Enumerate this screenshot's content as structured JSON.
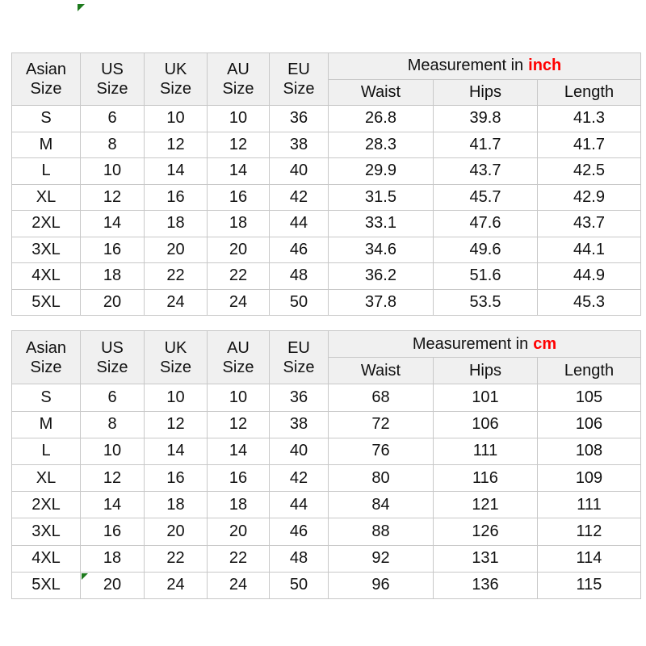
{
  "colors": {
    "unit_accent_red": "#ff0000",
    "flag_green": "#1d7a1d",
    "header_background": "#f0f0f0",
    "grid_border": "#c8c8c8"
  },
  "chart_data": {
    "type": "table",
    "tables": [
      {
        "unit_name": "inch",
        "measurement_prefix": "Measurement in",
        "measurement_unit": "inch",
        "size_headers": [
          {
            "label": "Asian\nSize"
          },
          {
            "label": "US\nSize"
          },
          {
            "label": "UK\nSize"
          },
          {
            "label": "AU\nSize"
          },
          {
            "label": "EU\nSize"
          }
        ],
        "measure_headers": [
          "Waist",
          "Hips",
          "Length"
        ],
        "rows": [
          [
            "S",
            "6",
            "10",
            "10",
            "36",
            "26.8",
            "39.8",
            "41.3"
          ],
          [
            "M",
            "8",
            "12",
            "12",
            "38",
            "28.3",
            "41.7",
            "41.7"
          ],
          [
            "L",
            "10",
            "14",
            "14",
            "40",
            "29.9",
            "43.7",
            "42.5"
          ],
          [
            "XL",
            "12",
            "16",
            "16",
            "42",
            "31.5",
            "45.7",
            "42.9"
          ],
          [
            "2XL",
            "14",
            "18",
            "18",
            "44",
            "33.1",
            "47.6",
            "43.7"
          ],
          [
            "3XL",
            "16",
            "20",
            "20",
            "46",
            "34.6",
            "49.6",
            "44.1"
          ],
          [
            "4XL",
            "18",
            "22",
            "22",
            "48",
            "36.2",
            "51.6",
            "44.9"
          ],
          [
            "5XL",
            "20",
            "24",
            "24",
            "50",
            "37.8",
            "53.5",
            "45.3"
          ]
        ]
      },
      {
        "unit_name": "cm",
        "measurement_prefix": "Measurement in",
        "measurement_unit": "cm",
        "size_headers": [
          {
            "label": "Asian\nSize"
          },
          {
            "label": "US\nSize"
          },
          {
            "label": "UK\nSize"
          },
          {
            "label": "AU\nSize"
          },
          {
            "label": "EU\nSize"
          }
        ],
        "measure_headers": [
          "Waist",
          "Hips",
          "Length"
        ],
        "rows": [
          [
            "S",
            "6",
            "10",
            "10",
            "36",
            "68",
            "101",
            "105"
          ],
          [
            "M",
            "8",
            "12",
            "12",
            "38",
            "72",
            "106",
            "106"
          ],
          [
            "L",
            "10",
            "14",
            "14",
            "40",
            "76",
            "111",
            "108"
          ],
          [
            "XL",
            "12",
            "16",
            "16",
            "42",
            "80",
            "116",
            "109"
          ],
          [
            "2XL",
            "14",
            "18",
            "18",
            "44",
            "84",
            "121",
            "111"
          ],
          [
            "3XL",
            "16",
            "20",
            "20",
            "46",
            "88",
            "126",
            "112"
          ],
          [
            "4XL",
            "18",
            "22",
            "22",
            "48",
            "92",
            "131",
            "114"
          ],
          [
            "5XL",
            "20",
            "24",
            "24",
            "50",
            "96",
            "136",
            "115"
          ]
        ]
      }
    ]
  }
}
